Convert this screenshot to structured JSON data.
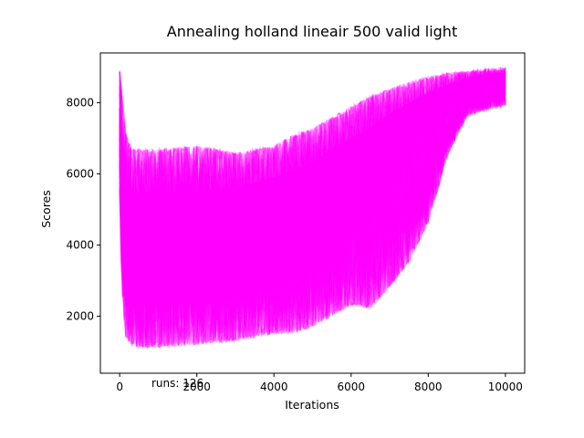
{
  "chart_data": {
    "type": "line",
    "title": "Annealing holland lineair 500 valid light",
    "xlabel": "Iterations",
    "ylabel": "Scores",
    "xlim": [
      -500,
      10500
    ],
    "ylim": [
      400,
      9400
    ],
    "x_ticks": [
      0,
      2000,
      4000,
      6000,
      8000,
      10000
    ],
    "y_ticks": [
      2000,
      4000,
      6000,
      8000
    ],
    "x_tick_labels": [
      "0",
      "2000",
      "4000",
      "6000",
      "8000",
      "10000"
    ],
    "y_tick_labels": [
      "2000",
      "4000",
      "6000",
      "8000"
    ],
    "grid": false,
    "legend": "none",
    "series_color": "#ff00ff",
    "series_alpha": 0.2,
    "annotation": "runs: 126",
    "runs": 126,
    "envelope": {
      "x": [
        0,
        50,
        150,
        300,
        500,
        1000,
        2000,
        3000,
        4000,
        4500,
        5000,
        5500,
        6000,
        6500,
        7000,
        7500,
        8000,
        8500,
        9000,
        9500,
        10000
      ],
      "upper": [
        8950,
        8300,
        7200,
        6700,
        6700,
        6700,
        6800,
        6600,
        6800,
        7100,
        7300,
        7600,
        7900,
        8200,
        8400,
        8600,
        8750,
        8850,
        8900,
        8950,
        9000
      ],
      "lower": [
        5500,
        3000,
        1400,
        1200,
        1100,
        1100,
        1200,
        1300,
        1500,
        1500,
        1700,
        2000,
        2300,
        2200,
        2800,
        3500,
        4600,
        6500,
        7600,
        7800,
        7900
      ],
      "typical_upper": [
        8700,
        7500,
        5600,
        5400,
        5400,
        5400,
        5500,
        5600,
        5900,
        6100,
        6300,
        6700,
        7000,
        7300,
        7700,
        8000,
        8300,
        8500,
        8700,
        8800,
        8850
      ],
      "typical_lower": [
        7000,
        4000,
        2300,
        2300,
        2300,
        2300,
        2400,
        2500,
        2800,
        3000,
        3200,
        3600,
        4100,
        4700,
        5500,
        6400,
        7300,
        8000,
        8400,
        8500,
        8600
      ]
    }
  }
}
